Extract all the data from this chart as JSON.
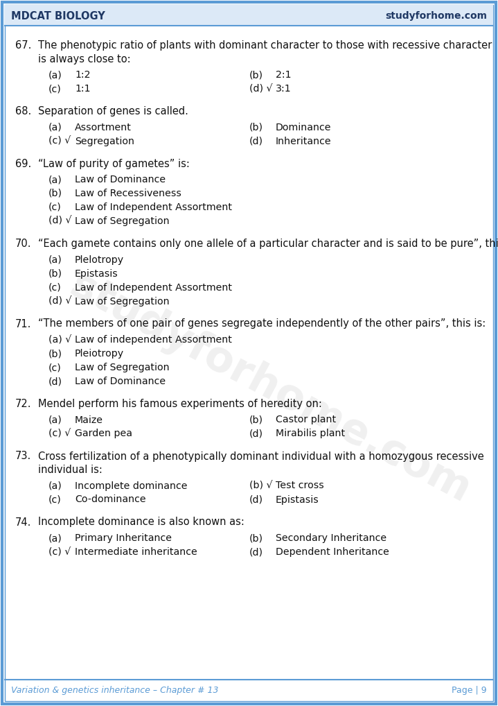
{
  "header_left": "MDCAT BIOLOGY",
  "header_right": "studyforhome.com",
  "footer_left": "Variation & genetics inheritance – Chapter # 13",
  "footer_right": "Page | 9",
  "header_color": "#1F3864",
  "footer_color": "#5B9BD5",
  "border_color": "#5B9BD5",
  "bg_color": "#FFFFFF",
  "watermark_text": "studyforhome.com",
  "questions": [
    {
      "num": "67.",
      "text": "The phenotypic ratio of plants with dominant character to those with recessive character\nis always close to:",
      "options_2col": true,
      "options": [
        {
          "label": "(a)",
          "tick": "",
          "text": "1:2"
        },
        {
          "label": "(b)",
          "tick": "",
          "text": "2:1"
        },
        {
          "label": "(c)",
          "tick": "",
          "text": "1:1"
        },
        {
          "label": "(d)",
          "tick": "√",
          "text": "3:1"
        }
      ]
    },
    {
      "num": "68.",
      "text": "Separation of genes is called.",
      "options_2col": true,
      "options": [
        {
          "label": "(a)",
          "tick": "",
          "text": "Assortment"
        },
        {
          "label": "(b)",
          "tick": "",
          "text": "Dominance"
        },
        {
          "label": "(c)",
          "tick": "√",
          "text": "Segregation"
        },
        {
          "label": "(d)",
          "tick": "",
          "text": "Inheritance"
        }
      ]
    },
    {
      "num": "69.",
      "text": "“Law of purity of gametes” is:",
      "options_2col": false,
      "options": [
        {
          "label": "(a)",
          "tick": "",
          "text": "Law of Dominance"
        },
        {
          "label": "(b)",
          "tick": "",
          "text": "Law of Recessiveness"
        },
        {
          "label": "(c)",
          "tick": "",
          "text": "Law of Independent Assortment"
        },
        {
          "label": "(d)",
          "tick": "√",
          "text": "Law of Segregation"
        }
      ]
    },
    {
      "num": "70.",
      "text": "“Each gamete contains only one allele of a particular character and is said to be pure”, this",
      "options_2col": false,
      "options": [
        {
          "label": "(a)",
          "tick": "",
          "text": "Plelotropy"
        },
        {
          "label": "(b)",
          "tick": "",
          "text": "Epistasis"
        },
        {
          "label": "(c)",
          "tick": "",
          "text": "Law of Independent Assortment"
        },
        {
          "label": "(d)",
          "tick": "√",
          "text": "Law of Segregation"
        }
      ]
    },
    {
      "num": "71.",
      "text": "“The members of one pair of genes segregate independently of the other pairs”, this is:",
      "options_2col": false,
      "options": [
        {
          "label": "(a)",
          "tick": "√",
          "text": "Law of independent Assortment"
        },
        {
          "label": "(b)",
          "tick": "",
          "text": "Pleiotropy"
        },
        {
          "label": "(c)",
          "tick": "",
          "text": "Law of Segregation"
        },
        {
          "label": "(d)",
          "tick": "",
          "text": "Law of Dominance"
        }
      ]
    },
    {
      "num": "72.",
      "text": "Mendel perform his famous experiments of heredity on:",
      "options_2col": true,
      "options": [
        {
          "label": "(a)",
          "tick": "",
          "text": "Maize"
        },
        {
          "label": "(b)",
          "tick": "",
          "text": "Castor plant"
        },
        {
          "label": "(c)",
          "tick": "√",
          "text": "Garden pea"
        },
        {
          "label": "(d)",
          "tick": "",
          "text": "Mirabilis plant"
        }
      ]
    },
    {
      "num": "73.",
      "text": "Cross fertilization of a phenotypically dominant individual with a homozygous recessive\nindividual is:",
      "options_2col": true,
      "options": [
        {
          "label": "(a)",
          "tick": "",
          "text": "Incomplete dominance"
        },
        {
          "label": "(b)",
          "tick": "√",
          "text": "Test cross"
        },
        {
          "label": "(c)",
          "tick": "",
          "text": "Co-dominance"
        },
        {
          "label": "(d)",
          "tick": "",
          "text": "Epistasis"
        }
      ]
    },
    {
      "num": "74.",
      "text": "Incomplete dominance is also known as:",
      "options_2col": true,
      "options": [
        {
          "label": "(a)",
          "tick": "",
          "text": "Primary Inheritance"
        },
        {
          "label": "(b)",
          "tick": "",
          "text": "Secondary Inheritance"
        },
        {
          "label": "(c)",
          "tick": "√",
          "text": "Intermediate inheritance"
        },
        {
          "label": "(d)",
          "tick": "",
          "text": "Dependent Inheritance"
        }
      ]
    }
  ]
}
